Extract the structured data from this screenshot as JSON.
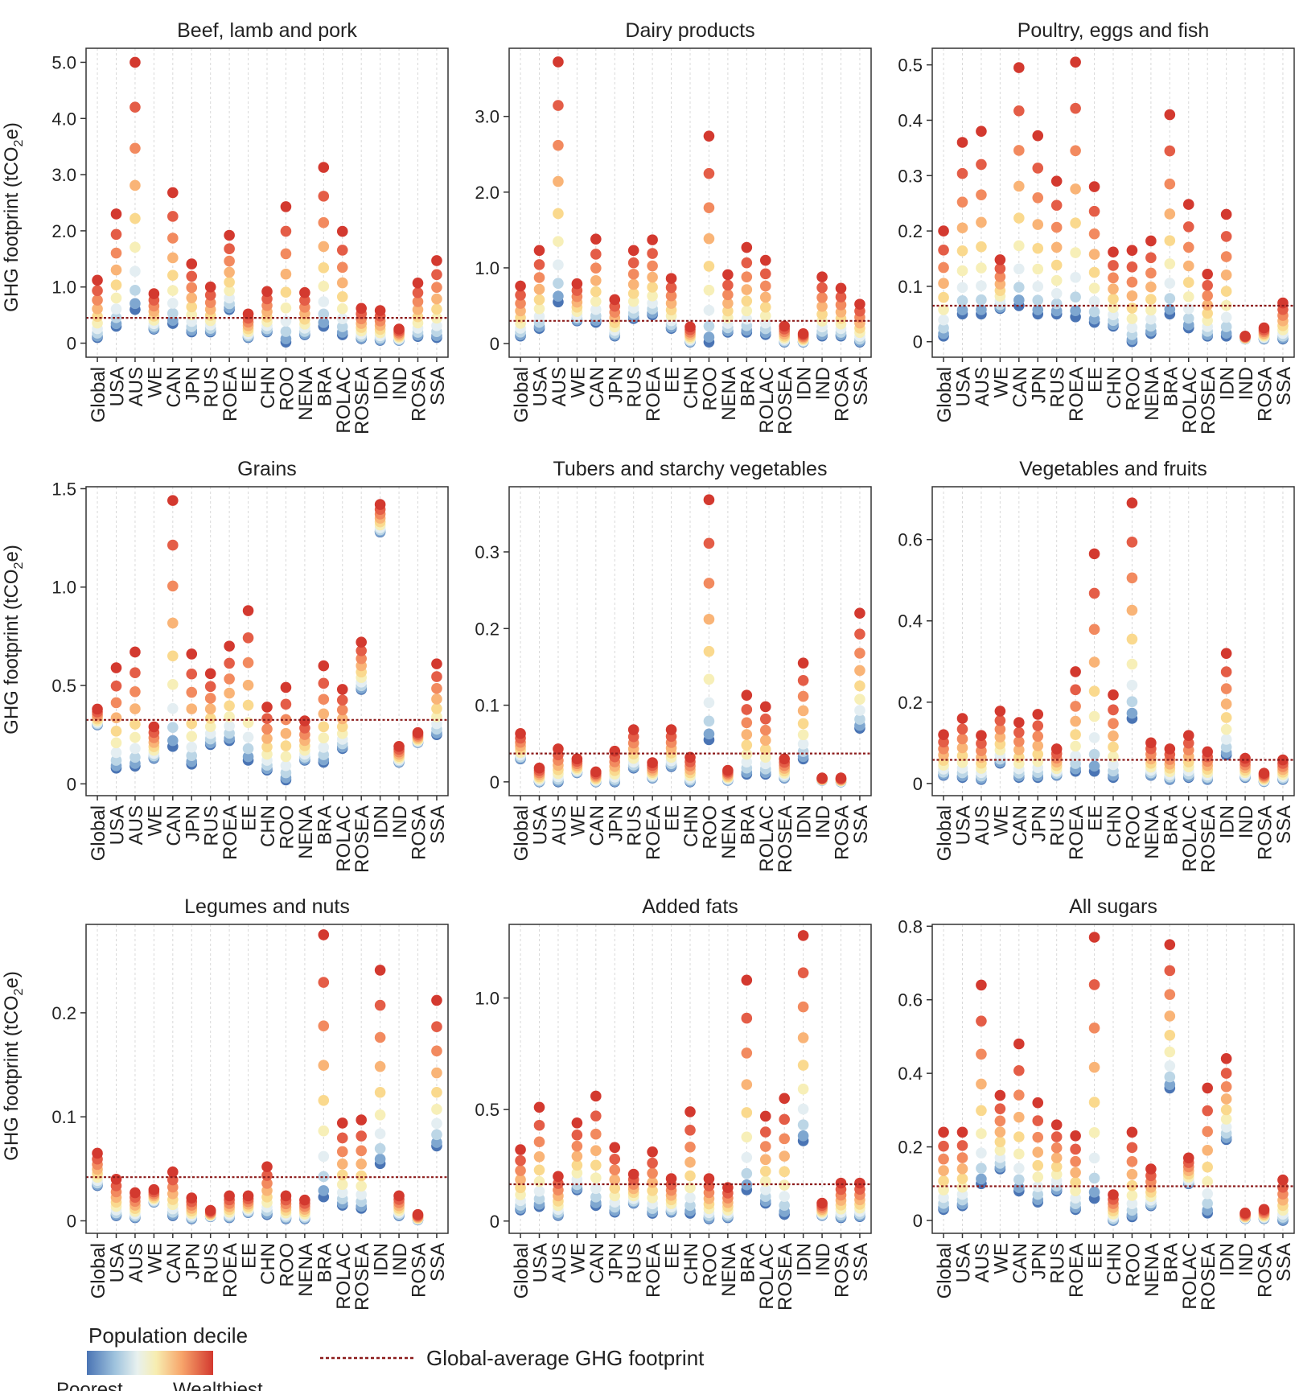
{
  "figure": {
    "ylabel": "GHG footprint (tCO2e)",
    "ylabel_main": "GHG footprint (tCO",
    "ylabel_sub": "2",
    "ylabel_end": "e)",
    "legend": {
      "title": "Population decile",
      "low": "Poorest",
      "high": "Wealthiest",
      "line_label": "Global-average GHG footprint",
      "colors": [
        "#4a74b4",
        "#7fa7d0",
        "#bcd6e6",
        "#e4eef2",
        "#f7efb8",
        "#fad98e",
        "#f9b477",
        "#f28a5f",
        "#e45d47",
        "#d3392f"
      ],
      "line_color": "#8b1a1a"
    }
  },
  "chart_data": [
    {
      "type": "scatter",
      "title": "Beef, lamb and pork",
      "categories": [
        "Global",
        "USA",
        "AUS",
        "WE",
        "CAN",
        "JPN",
        "RUS",
        "ROEA",
        "EE",
        "CHN",
        "ROO",
        "NENA",
        "BRA",
        "ROLAC",
        "ROSEA",
        "IDN",
        "IND",
        "ROSA",
        "SSA"
      ],
      "ylim": [
        -0.25,
        5.25
      ],
      "yticks": [
        0,
        1.0,
        2.0,
        3.0,
        4.0,
        5.0
      ],
      "ytick_labels": [
        "0",
        "1.0",
        "2.0",
        "3.0",
        "4.0",
        "5.0"
      ],
      "global_average": 0.45,
      "min": [
        0.1,
        0.3,
        0.6,
        0.25,
        0.35,
        0.2,
        0.2,
        0.6,
        0.1,
        0.2,
        0.02,
        0.15,
        0.3,
        0.15,
        0.08,
        0.05,
        0.05,
        0.12,
        0.1
      ],
      "max": [
        1.12,
        2.3,
        5.0,
        0.88,
        2.68,
        1.41,
        1.0,
        1.92,
        0.52,
        0.92,
        2.43,
        0.9,
        3.13,
        1.99,
        0.62,
        0.58,
        0.25,
        1.07,
        1.47
      ]
    },
    {
      "type": "scatter",
      "title": "Dairy products",
      "categories": [
        "Global",
        "USA",
        "AUS",
        "WE",
        "CAN",
        "JPN",
        "RUS",
        "ROEA",
        "EE",
        "CHN",
        "ROO",
        "NENA",
        "BRA",
        "ROLAC",
        "ROSEA",
        "IDN",
        "IND",
        "ROSA",
        "SSA"
      ],
      "ylim": [
        -0.18,
        3.9
      ],
      "yticks": [
        0,
        1.0,
        2.0,
        3.0
      ],
      "ytick_labels": [
        "0",
        "1.0",
        "2.0",
        "3.0"
      ],
      "global_average": 0.3,
      "min": [
        0.1,
        0.2,
        0.55,
        0.3,
        0.28,
        0.1,
        0.33,
        0.38,
        0.2,
        0.02,
        0.02,
        0.15,
        0.15,
        0.12,
        0.02,
        0.02,
        0.1,
        0.1,
        0.02
      ],
      "max": [
        0.76,
        1.23,
        3.72,
        0.79,
        1.38,
        0.58,
        1.23,
        1.37,
        0.86,
        0.22,
        2.74,
        0.91,
        1.27,
        1.1,
        0.23,
        0.13,
        0.88,
        0.73,
        0.52
      ]
    },
    {
      "type": "scatter",
      "title": "Poultry, eggs and fish",
      "categories": [
        "Global",
        "USA",
        "AUS",
        "WE",
        "CAN",
        "JPN",
        "RUS",
        "ROEA",
        "EE",
        "CHN",
        "ROO",
        "NENA",
        "BRA",
        "ROLAC",
        "ROSEA",
        "IDN",
        "IND",
        "ROSA",
        "SSA"
      ],
      "ylim": [
        -0.028,
        0.53
      ],
      "yticks": [
        0,
        0.1,
        0.2,
        0.3,
        0.4,
        0.5
      ],
      "ytick_labels": [
        "0",
        "0.1",
        "0.2",
        "0.3",
        "0.4",
        "0.5"
      ],
      "global_average": 0.065,
      "min": [
        0.01,
        0.05,
        0.05,
        0.06,
        0.065,
        0.05,
        0.05,
        0.045,
        0.035,
        0.028,
        0.0,
        0.015,
        0.05,
        0.025,
        0.01,
        0.01,
        0.005,
        0.005,
        0.005
      ],
      "max": [
        0.2,
        0.36,
        0.38,
        0.148,
        0.495,
        0.372,
        0.29,
        0.505,
        0.28,
        0.162,
        0.165,
        0.182,
        0.41,
        0.248,
        0.122,
        0.23,
        0.01,
        0.025,
        0.07
      ]
    },
    {
      "type": "scatter",
      "title": "Grains",
      "categories": [
        "Global",
        "USA",
        "AUS",
        "WE",
        "CAN",
        "JPN",
        "RUS",
        "ROEA",
        "EE",
        "CHN",
        "ROO",
        "NENA",
        "BRA",
        "ROLAC",
        "ROSEA",
        "IDN",
        "IND",
        "ROSA",
        "SSA"
      ],
      "ylim": [
        -0.06,
        1.51
      ],
      "yticks": [
        0,
        0.5,
        1.0,
        1.5
      ],
      "ytick_labels": [
        "0",
        "0.5",
        "1.0",
        "1.5"
      ],
      "global_average": 0.325,
      "min": [
        0.3,
        0.08,
        0.09,
        0.13,
        0.19,
        0.1,
        0.2,
        0.22,
        0.12,
        0.07,
        0.02,
        0.12,
        0.11,
        0.18,
        0.48,
        1.28,
        0.11,
        0.21,
        0.25
      ],
      "max": [
        0.38,
        0.59,
        0.67,
        0.29,
        1.44,
        0.66,
        0.56,
        0.7,
        0.88,
        0.39,
        0.49,
        0.32,
        0.6,
        0.48,
        0.72,
        1.42,
        0.19,
        0.26,
        0.61
      ]
    },
    {
      "type": "scatter",
      "title": "Tubers and starchy vegetables",
      "categories": [
        "Global",
        "USA",
        "AUS",
        "WE",
        "CAN",
        "JPN",
        "RUS",
        "ROEA",
        "EE",
        "CHN",
        "ROO",
        "NENA",
        "BRA",
        "ROLAC",
        "ROSEA",
        "IDN",
        "IND",
        "ROSA",
        "SSA"
      ],
      "ylim": [
        -0.018,
        0.385
      ],
      "yticks": [
        0,
        0.1,
        0.2,
        0.3
      ],
      "ytick_labels": [
        "0",
        "0.1",
        "0.2",
        "0.3"
      ],
      "global_average": 0.037,
      "min": [
        0.03,
        0.0,
        0.0,
        0.012,
        0.0,
        0.0,
        0.018,
        0.005,
        0.02,
        0.0,
        0.055,
        0.002,
        0.01,
        0.01,
        0.005,
        0.03,
        0.002,
        0.0,
        0.07
      ],
      "max": [
        0.063,
        0.018,
        0.043,
        0.03,
        0.013,
        0.04,
        0.068,
        0.025,
        0.068,
        0.032,
        0.368,
        0.015,
        0.113,
        0.098,
        0.03,
        0.155,
        0.005,
        0.005,
        0.22
      ]
    },
    {
      "type": "scatter",
      "title": "Vegetables and fruits",
      "categories": [
        "Global",
        "USA",
        "AUS",
        "WE",
        "CAN",
        "JPN",
        "RUS",
        "ROEA",
        "EE",
        "CHN",
        "ROO",
        "NENA",
        "BRA",
        "ROLAC",
        "ROSEA",
        "IDN",
        "IND",
        "ROSA",
        "SSA"
      ],
      "ylim": [
        -0.03,
        0.73
      ],
      "yticks": [
        0,
        0.2,
        0.4,
        0.6
      ],
      "ytick_labels": [
        "0",
        "0.2",
        "0.4",
        "0.6"
      ],
      "global_average": 0.058,
      "min": [
        0.02,
        0.015,
        0.01,
        0.05,
        0.015,
        0.015,
        0.02,
        0.03,
        0.03,
        0.015,
        0.16,
        0.02,
        0.01,
        0.015,
        0.01,
        0.07,
        0.015,
        0.005,
        0.01
      ],
      "max": [
        0.12,
        0.16,
        0.118,
        0.178,
        0.15,
        0.17,
        0.085,
        0.275,
        0.565,
        0.218,
        0.69,
        0.1,
        0.085,
        0.118,
        0.078,
        0.32,
        0.062,
        0.025,
        0.058
      ]
    },
    {
      "type": "scatter",
      "title": "Legumes and nuts",
      "categories": [
        "Global",
        "USA",
        "AUS",
        "WE",
        "CAN",
        "JPN",
        "RUS",
        "ROEA",
        "EE",
        "CHN",
        "ROO",
        "NENA",
        "BRA",
        "ROLAC",
        "ROSEA",
        "IDN",
        "IND",
        "ROSA",
        "SSA"
      ],
      "ylim": [
        -0.012,
        0.285
      ],
      "yticks": [
        0,
        0.1,
        0.2
      ],
      "ytick_labels": [
        "0",
        "0.1",
        "0.2"
      ],
      "global_average": 0.042,
      "min": [
        0.034,
        0.005,
        0.003,
        0.018,
        0.005,
        0.002,
        0.004,
        0.003,
        0.008,
        0.006,
        0.002,
        0.002,
        0.023,
        0.015,
        0.012,
        0.055,
        0.005,
        0.001,
        0.072
      ],
      "max": [
        0.065,
        0.04,
        0.027,
        0.03,
        0.047,
        0.022,
        0.01,
        0.024,
        0.024,
        0.052,
        0.024,
        0.02,
        0.275,
        0.094,
        0.097,
        0.241,
        0.024,
        0.006,
        0.212
      ]
    },
    {
      "type": "scatter",
      "title": "Added fats",
      "categories": [
        "Global",
        "USA",
        "AUS",
        "WE",
        "CAN",
        "JPN",
        "RUS",
        "ROEA",
        "EE",
        "CHN",
        "ROO",
        "NENA",
        "BRA",
        "ROLAC",
        "ROSEA",
        "IDN",
        "IND",
        "ROSA",
        "SSA"
      ],
      "ylim": [
        -0.055,
        1.33
      ],
      "yticks": [
        0,
        0.5,
        1.0
      ],
      "ytick_labels": [
        "0",
        "0.5",
        "1.0"
      ],
      "global_average": 0.165,
      "min": [
        0.05,
        0.065,
        0.025,
        0.14,
        0.07,
        0.04,
        0.08,
        0.035,
        0.04,
        0.035,
        0.01,
        0.015,
        0.14,
        0.08,
        0.03,
        0.36,
        0.025,
        0.015,
        0.02
      ],
      "max": [
        0.32,
        0.51,
        0.2,
        0.44,
        0.56,
        0.33,
        0.21,
        0.31,
        0.19,
        0.49,
        0.19,
        0.15,
        1.08,
        0.47,
        0.55,
        1.28,
        0.08,
        0.17,
        0.17
      ]
    },
    {
      "type": "scatter",
      "title": "All sugars",
      "categories": [
        "Global",
        "USA",
        "AUS",
        "WE",
        "CAN",
        "JPN",
        "RUS",
        "ROEA",
        "EE",
        "CHN",
        "ROO",
        "NENA",
        "BRA",
        "ROLAC",
        "ROSEA",
        "IDN",
        "IND",
        "ROSA",
        "SSA"
      ],
      "ylim": [
        -0.035,
        0.805
      ],
      "yticks": [
        0,
        0.2,
        0.4,
        0.6,
        0.8
      ],
      "ytick_labels": [
        "0",
        "0.2",
        "0.4",
        "0.6",
        "0.8"
      ],
      "global_average": 0.093,
      "min": [
        0.03,
        0.04,
        0.1,
        0.14,
        0.08,
        0.05,
        0.08,
        0.03,
        0.06,
        0.0,
        0.01,
        0.04,
        0.36,
        0.1,
        0.02,
        0.22,
        0.005,
        0.005,
        0.0
      ],
      "max": [
        0.24,
        0.24,
        0.64,
        0.34,
        0.48,
        0.32,
        0.26,
        0.23,
        0.77,
        0.07,
        0.24,
        0.14,
        0.75,
        0.17,
        0.36,
        0.44,
        0.02,
        0.03,
        0.11
      ]
    }
  ]
}
